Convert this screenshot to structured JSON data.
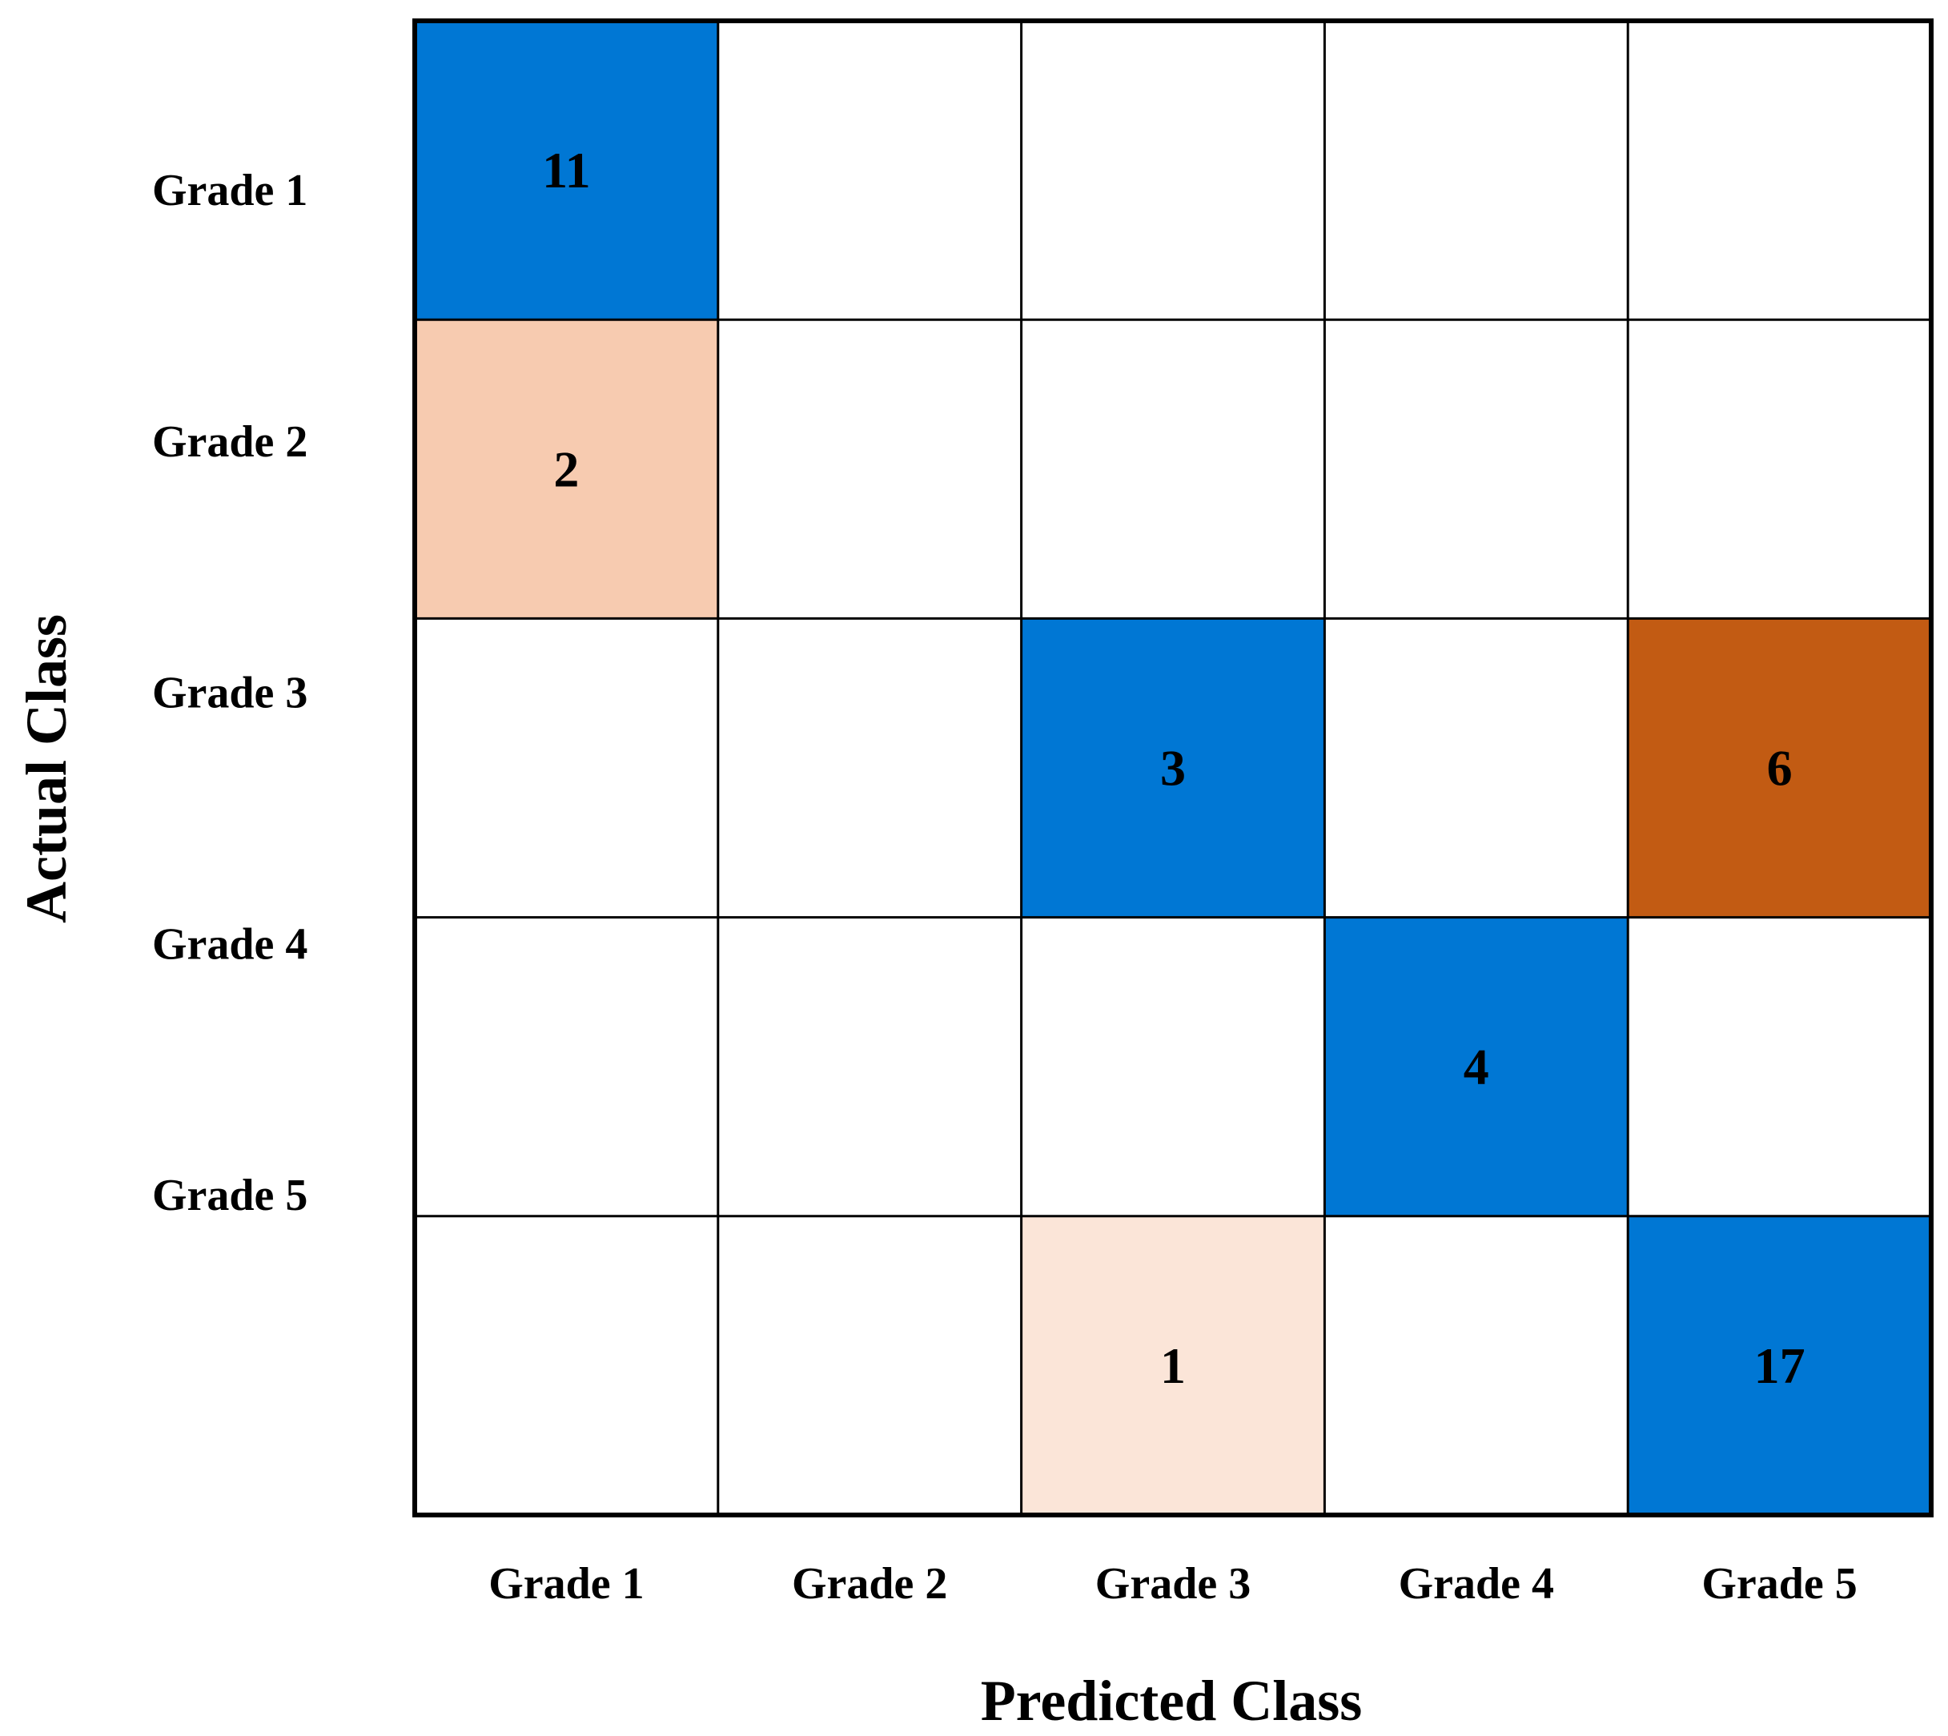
{
  "chart_data": {
    "type": "heatmap",
    "xlabel": "Predicted Class",
    "ylabel": "Actual Class",
    "x_categories": [
      "Grade 1",
      "Grade 2",
      "Grade 3",
      "Grade 4",
      "Grade 5"
    ],
    "y_categories": [
      "Grade 1",
      "Grade 2",
      "Grade 3",
      "Grade 4",
      "Grade 5"
    ],
    "cells": [
      {
        "row": 0,
        "col": 0,
        "value": 11,
        "color": "#0077d4"
      },
      {
        "row": 1,
        "col": 0,
        "value": 2,
        "color": "#f7cbb0"
      },
      {
        "row": 2,
        "col": 2,
        "value": 3,
        "color": "#0077d4"
      },
      {
        "row": 2,
        "col": 4,
        "value": 6,
        "color": "#c25b13"
      },
      {
        "row": 3,
        "col": 3,
        "value": 4,
        "color": "#0077d4"
      },
      {
        "row": 4,
        "col": 2,
        "value": 1,
        "color": "#fbe5d8"
      },
      {
        "row": 4,
        "col": 4,
        "value": 17,
        "color": "#0077d4"
      }
    ],
    "empty_cell_color": "#ffffff",
    "grid_color": "#000000"
  }
}
